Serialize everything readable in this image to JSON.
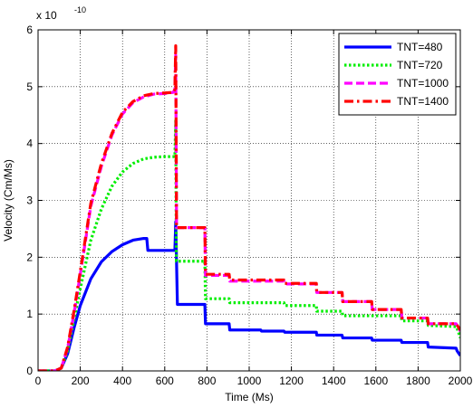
{
  "chart_data": {
    "type": "line",
    "title": "",
    "xlabel": "Time (Ms)",
    "ylabel": "Velocity (Cm/Ms)",
    "y_multiplier": {
      "base": "x 10",
      "exponent": "-10"
    },
    "xlim": [
      0,
      2000
    ],
    "ylim": [
      0,
      6
    ],
    "x_ticks": [
      0,
      200,
      400,
      600,
      800,
      1000,
      1200,
      1400,
      1600,
      1800,
      2000
    ],
    "y_ticks": [
      0,
      1,
      2,
      3,
      4,
      5,
      6
    ],
    "grid": true,
    "legend_position": "top-right",
    "series": [
      {
        "name": "TNT=480",
        "color": "#0000ff",
        "dash": "solid",
        "points": [
          [
            0,
            0
          ],
          [
            80,
            0
          ],
          [
            110,
            0.05
          ],
          [
            140,
            0.3
          ],
          [
            170,
            0.75
          ],
          [
            200,
            1.15
          ],
          [
            250,
            1.62
          ],
          [
            300,
            1.92
          ],
          [
            350,
            2.1
          ],
          [
            400,
            2.22
          ],
          [
            450,
            2.3
          ],
          [
            500,
            2.33
          ],
          [
            515,
            2.33
          ],
          [
            520,
            2.12
          ],
          [
            648,
            2.12
          ],
          [
            650,
            2.35
          ],
          [
            652,
            2.62
          ],
          [
            660,
            1.17
          ],
          [
            790,
            1.17
          ],
          [
            793,
            0.83
          ],
          [
            905,
            0.83
          ],
          [
            908,
            0.72
          ],
          [
            1055,
            0.72
          ],
          [
            1058,
            0.7
          ],
          [
            1165,
            0.7
          ],
          [
            1168,
            0.68
          ],
          [
            1318,
            0.68
          ],
          [
            1320,
            0.63
          ],
          [
            1440,
            0.63
          ],
          [
            1443,
            0.58
          ],
          [
            1580,
            0.58
          ],
          [
            1583,
            0.54
          ],
          [
            1720,
            0.54
          ],
          [
            1723,
            0.5
          ],
          [
            1845,
            0.5
          ],
          [
            1848,
            0.42
          ],
          [
            1980,
            0.4
          ],
          [
            1985,
            0.35
          ],
          [
            2000,
            0.27
          ]
        ]
      },
      {
        "name": "TNT=720",
        "color": "#00ee00",
        "dash": "dotted",
        "points": [
          [
            0,
            0
          ],
          [
            80,
            0
          ],
          [
            110,
            0.05
          ],
          [
            140,
            0.35
          ],
          [
            170,
            0.9
          ],
          [
            200,
            1.45
          ],
          [
            250,
            2.3
          ],
          [
            300,
            2.85
          ],
          [
            350,
            3.25
          ],
          [
            400,
            3.5
          ],
          [
            450,
            3.65
          ],
          [
            500,
            3.73
          ],
          [
            550,
            3.76
          ],
          [
            600,
            3.77
          ],
          [
            648,
            3.77
          ],
          [
            652,
            4.4
          ],
          [
            655,
            1.93
          ],
          [
            790,
            1.93
          ],
          [
            793,
            1.27
          ],
          [
            905,
            1.27
          ],
          [
            908,
            1.2
          ],
          [
            1165,
            1.2
          ],
          [
            1168,
            1.15
          ],
          [
            1318,
            1.15
          ],
          [
            1320,
            1.05
          ],
          [
            1440,
            1.05
          ],
          [
            1443,
            0.97
          ],
          [
            1720,
            0.97
          ],
          [
            1723,
            0.88
          ],
          [
            1845,
            0.88
          ],
          [
            1848,
            0.8
          ],
          [
            1980,
            0.78
          ],
          [
            1990,
            0.7
          ],
          [
            2000,
            0.58
          ]
        ]
      },
      {
        "name": "TNT=1000",
        "color": "#ff00ff",
        "dash": "dashed",
        "points": [
          [
            0,
            0
          ],
          [
            80,
            0
          ],
          [
            110,
            0.05
          ],
          [
            140,
            0.4
          ],
          [
            170,
            1.0
          ],
          [
            200,
            1.7
          ],
          [
            250,
            2.9
          ],
          [
            300,
            3.6
          ],
          [
            350,
            4.15
          ],
          [
            400,
            4.52
          ],
          [
            450,
            4.72
          ],
          [
            500,
            4.82
          ],
          [
            550,
            4.87
          ],
          [
            600,
            4.88
          ],
          [
            640,
            4.9
          ],
          [
            648,
            4.95
          ],
          [
            652,
            5.55
          ],
          [
            656,
            2.52
          ],
          [
            790,
            2.52
          ],
          [
            793,
            1.68
          ],
          [
            905,
            1.68
          ],
          [
            908,
            1.58
          ],
          [
            1165,
            1.58
          ],
          [
            1168,
            1.53
          ],
          [
            1318,
            1.53
          ],
          [
            1320,
            1.38
          ],
          [
            1440,
            1.38
          ],
          [
            1443,
            1.22
          ],
          [
            1580,
            1.22
          ],
          [
            1583,
            1.08
          ],
          [
            1720,
            1.08
          ],
          [
            1723,
            0.93
          ],
          [
            1845,
            0.93
          ],
          [
            1848,
            0.83
          ],
          [
            1980,
            0.83
          ],
          [
            2000,
            0.7
          ]
        ]
      },
      {
        "name": "TNT=1400",
        "color": "#ff0000",
        "dash": "dashdot",
        "points": [
          [
            0,
            0
          ],
          [
            80,
            0
          ],
          [
            110,
            0.05
          ],
          [
            140,
            0.42
          ],
          [
            170,
            1.05
          ],
          [
            200,
            1.75
          ],
          [
            250,
            2.95
          ],
          [
            300,
            3.65
          ],
          [
            350,
            4.18
          ],
          [
            400,
            4.55
          ],
          [
            450,
            4.74
          ],
          [
            500,
            4.84
          ],
          [
            550,
            4.88
          ],
          [
            600,
            4.89
          ],
          [
            640,
            4.9
          ],
          [
            648,
            4.95
          ],
          [
            652,
            5.72
          ],
          [
            656,
            2.52
          ],
          [
            790,
            2.52
          ],
          [
            793,
            1.7
          ],
          [
            905,
            1.7
          ],
          [
            908,
            1.6
          ],
          [
            1165,
            1.6
          ],
          [
            1168,
            1.54
          ],
          [
            1318,
            1.54
          ],
          [
            1320,
            1.38
          ],
          [
            1440,
            1.38
          ],
          [
            1443,
            1.22
          ],
          [
            1580,
            1.22
          ],
          [
            1583,
            1.08
          ],
          [
            1720,
            1.08
          ],
          [
            1723,
            0.93
          ],
          [
            1845,
            0.93
          ],
          [
            1848,
            0.83
          ],
          [
            1980,
            0.83
          ],
          [
            2000,
            0.72
          ]
        ]
      }
    ]
  }
}
